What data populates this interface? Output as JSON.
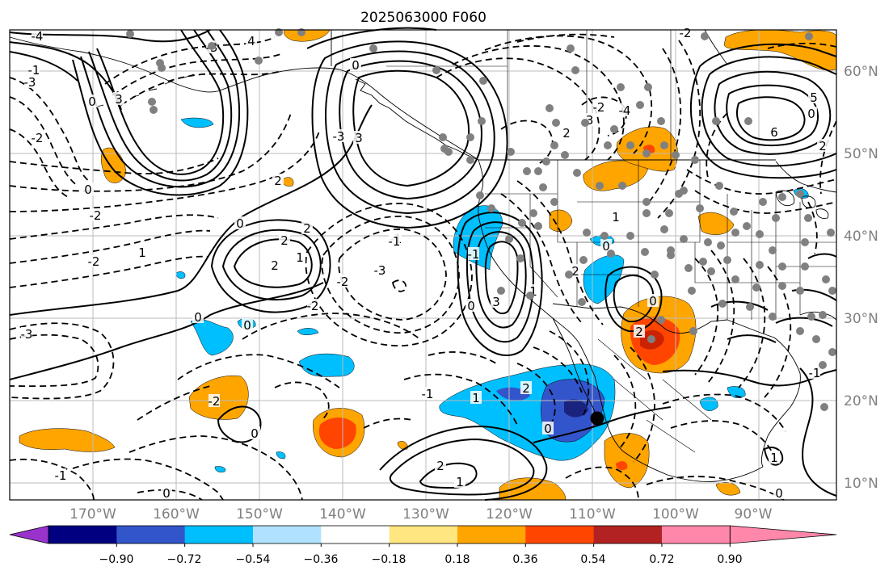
{
  "title": "2025063000 F060",
  "longitude_labels": [
    "170°W",
    "160°W",
    "150°W",
    "140°W",
    "130°W",
    "120°W",
    "110°W",
    "100°W",
    "90°W"
  ],
  "latitude_labels": [
    "60°N",
    "50°N",
    "40°N",
    "30°N",
    "20°N",
    "10°N"
  ],
  "colorbar": {
    "tick_labels": [
      "−0.90",
      "−0.72",
      "−0.54",
      "−0.36",
      "−0.18",
      "0.18",
      "0.36",
      "0.54",
      "0.72",
      "0.90"
    ],
    "colors": [
      "#9933cc",
      "#000080",
      "#3355cc",
      "#00bfff",
      "#b0e2ff",
      "#ffffff",
      "#ffe680",
      "#ffa500",
      "#ff4500",
      "#b22222",
      "#ff88aa"
    ]
  },
  "fill_colors": {
    "orange": "#ffa500",
    "red_orange": "#ff4500",
    "dark_red": "#cc2200",
    "sky": "#00bfff",
    "blue": "#3355cc",
    "navy": "#1a237e"
  },
  "contour_labels": [
    "-4",
    "-3",
    "4",
    "-1",
    "3",
    "0",
    "-2",
    "-3",
    "0",
    "3",
    "-3",
    "-2",
    "-4",
    "2",
    "-3",
    "6",
    "5",
    "2",
    "0",
    "2",
    "-2",
    "-2",
    "0",
    "0",
    "2",
    "2",
    "1",
    "1",
    "-1",
    "2",
    "-3",
    "-2",
    "3",
    "-1",
    "0",
    "1",
    "-2",
    "0",
    "2",
    "-2",
    "-3",
    "0",
    "2",
    "-1",
    "0",
    "1",
    "2",
    "0",
    "1",
    "0",
    "-1",
    "0",
    "1",
    "-1",
    "0",
    "0",
    "1",
    "2",
    "-1",
    "-2"
  ],
  "marker_count": 1
}
